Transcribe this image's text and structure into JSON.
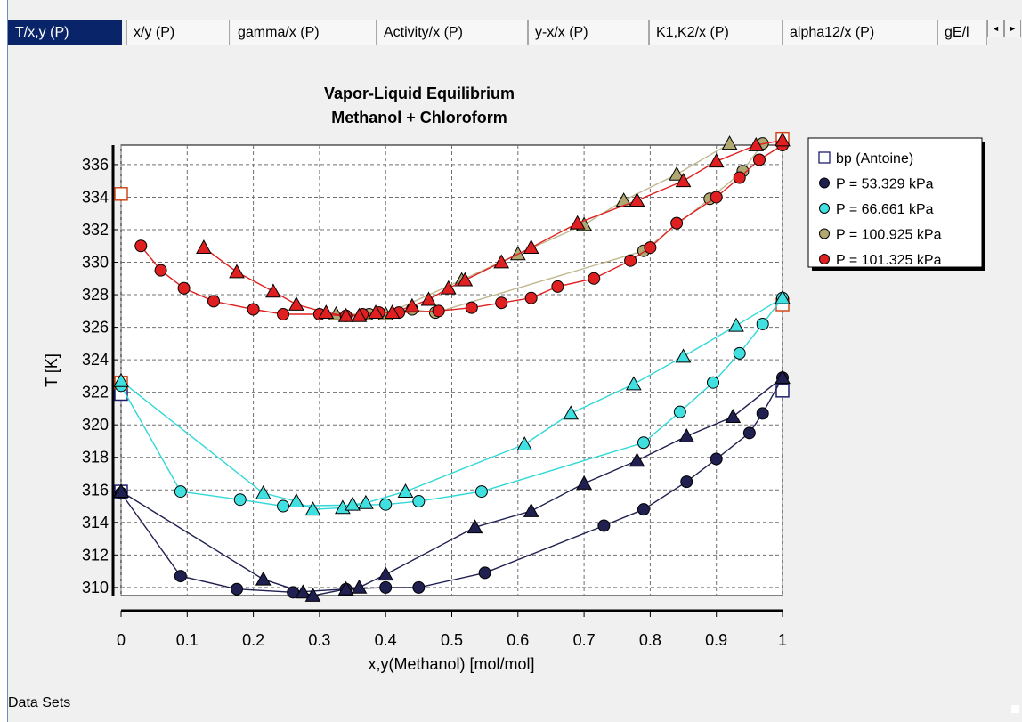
{
  "tabs": [
    {
      "label": "T/x,y (P)",
      "active": true
    },
    {
      "label": "x/y (P)",
      "active": false
    },
    {
      "label": "gamma/x (P)",
      "active": false
    },
    {
      "label": "Activity/x (P)",
      "active": false
    },
    {
      "label": "y-x/x (P)",
      "active": false
    },
    {
      "label": "K1,K2/x (P)",
      "active": false
    },
    {
      "label": "alpha12/x (P)",
      "active": false
    },
    {
      "label": "gE/l",
      "active": false
    }
  ],
  "tab_scroll": {
    "left": "◄",
    "right": "►"
  },
  "footer_label": "Data Sets",
  "chart_data": {
    "type": "scatter",
    "title": "Vapor-Liquid Equilibrium",
    "subtitle": "Methanol + Chloroform",
    "xlabel": "x,y(Methanol) [mol/mol]",
    "ylabel": "T [K]",
    "xlim": [
      0,
      1
    ],
    "ylim": [
      309.5,
      337.2
    ],
    "xticks": [
      0,
      0.1,
      0.2,
      0.3,
      0.4,
      0.5,
      0.6,
      0.7,
      0.8,
      0.9,
      1
    ],
    "xtick_labels": [
      "0",
      "0.1",
      "0.2",
      "0.3",
      "0.4",
      "0.5",
      "0.6",
      "0.7",
      "0.8",
      "0.9",
      "1"
    ],
    "yticks": [
      310,
      312,
      314,
      316,
      318,
      320,
      322,
      324,
      326,
      328,
      330,
      332,
      334,
      336
    ],
    "ytick_labels": [
      "310",
      "312",
      "314",
      "316",
      "318",
      "320",
      "322",
      "324",
      "326",
      "328",
      "330",
      "332",
      "334",
      "336"
    ],
    "grid": true,
    "legend_position": "top-right",
    "series": [
      {
        "name": "bp (Antoine)",
        "marker": "square",
        "fill": "#ffffff",
        "stroke": "#1e1e6e",
        "line": false,
        "x": [
          0,
          0,
          1
        ],
        "y": [
          315.9,
          321.9,
          322.1
        ]
      },
      {
        "name": "bp (Antoine)",
        "marker": "square",
        "fill": "#ffffff",
        "stroke": "#d04a1a",
        "line": false,
        "legend": false,
        "x": [
          0,
          0,
          1,
          1
        ],
        "y": [
          334.2,
          322.6,
          327.4,
          337.6
        ]
      },
      {
        "name": "P = 53.329 kPa",
        "marker": "circle",
        "fill": "#202050",
        "line_color": "#202050",
        "line": true,
        "bubble_x": [
          0,
          0.09,
          0.175,
          0.26,
          0.34,
          0.4,
          0.45,
          0.55,
          0.73,
          0.79,
          0.855,
          0.9,
          0.95,
          0.97,
          1
        ],
        "bubble_y": [
          315.8,
          310.7,
          309.9,
          309.7,
          309.9,
          310.0,
          310.0,
          310.9,
          313.8,
          314.8,
          316.5,
          317.9,
          319.5,
          320.7,
          322.9
        ],
        "dew_x": [
          0,
          0.215,
          0.275,
          0.29,
          0.34,
          0.36,
          0.4,
          0.535,
          0.62,
          0.7,
          0.78,
          0.855,
          0.925,
          1
        ],
        "dew_y": [
          315.9,
          310.5,
          309.7,
          309.5,
          309.9,
          310.0,
          310.8,
          313.7,
          314.7,
          316.4,
          317.8,
          319.3,
          320.5,
          322.9
        ]
      },
      {
        "name": "P = 66.661 kPa",
        "marker": "circle",
        "fill": "#40e0e0",
        "line_color": "#30d8d8",
        "line": true,
        "bubble_x": [
          0,
          0.09,
          0.18,
          0.245,
          0.4,
          0.45,
          0.545,
          0.79,
          0.845,
          0.895,
          0.935,
          0.97,
          1
        ],
        "bubble_y": [
          322.4,
          315.9,
          315.4,
          315.0,
          315.1,
          315.3,
          315.9,
          318.9,
          320.8,
          322.6,
          324.4,
          326.2,
          327.8
        ],
        "dew_x": [
          0,
          0.215,
          0.265,
          0.29,
          0.335,
          0.35,
          0.37,
          0.43,
          0.61,
          0.68,
          0.775,
          0.85,
          0.93,
          1
        ],
        "dew_y": [
          322.7,
          315.8,
          315.3,
          314.8,
          314.9,
          315.1,
          315.2,
          315.9,
          318.8,
          320.7,
          322.5,
          324.2,
          326.1,
          327.8
        ]
      },
      {
        "name": "P = 100.925 kPa",
        "marker": "circle",
        "fill": "#b0a870",
        "line_color": "#c0b890",
        "line": true,
        "bubble_x": [
          0.375,
          0.44,
          0.475,
          0.79,
          0.89,
          0.94,
          0.97
        ],
        "bubble_y": [
          326.8,
          327.1,
          326.9,
          330.7,
          333.9,
          335.6,
          337.3
        ],
        "dew_x": [
          0.325,
          0.4,
          0.515,
          0.6,
          0.7,
          0.76,
          0.84,
          0.92
        ],
        "dew_y": [
          326.8,
          326.8,
          328.9,
          330.5,
          332.3,
          333.8,
          335.4,
          337.3
        ]
      },
      {
        "name": "P = 101.325 kPa",
        "marker": "circle",
        "fill": "#e02020",
        "line_color": "#e02020",
        "line": true,
        "bubble_x": [
          0.03,
          0.06,
          0.095,
          0.14,
          0.2,
          0.245,
          0.3,
          0.34,
          0.365,
          0.39,
          0.42,
          0.48,
          0.53,
          0.575,
          0.62,
          0.66,
          0.715,
          0.77,
          0.8,
          0.84,
          0.9,
          0.935,
          0.965,
          1
        ],
        "bubble_y": [
          331.0,
          329.5,
          328.4,
          327.6,
          327.1,
          326.8,
          326.8,
          326.7,
          326.8,
          326.9,
          326.9,
          327.0,
          327.2,
          327.5,
          327.8,
          328.5,
          329.0,
          330.1,
          330.9,
          332.4,
          334.0,
          335.2,
          336.3,
          337.2
        ],
        "dew_x": [
          0.125,
          0.175,
          0.23,
          0.265,
          0.31,
          0.34,
          0.36,
          0.385,
          0.41,
          0.44,
          0.465,
          0.495,
          0.52,
          0.575,
          0.62,
          0.69,
          0.78,
          0.85,
          0.9,
          0.96,
          1
        ],
        "dew_y": [
          330.9,
          329.4,
          328.2,
          327.4,
          326.9,
          326.7,
          326.7,
          326.9,
          326.9,
          327.3,
          327.7,
          328.4,
          328.9,
          330.0,
          330.9,
          332.4,
          333.8,
          335.0,
          336.2,
          337.2,
          337.5
        ]
      }
    ]
  }
}
